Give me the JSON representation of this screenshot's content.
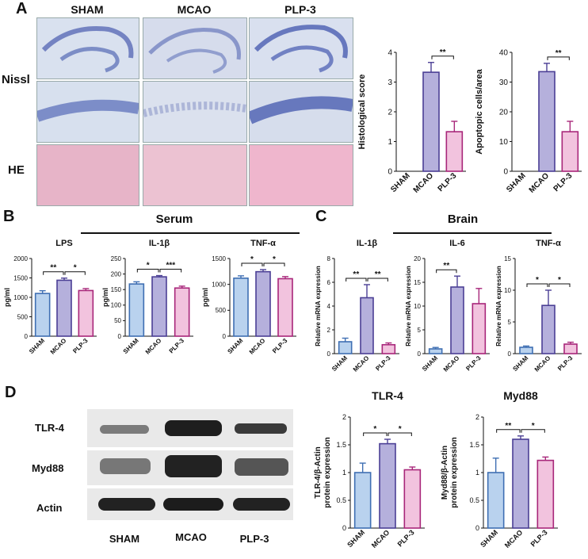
{
  "panels": {
    "a": "A",
    "b": "B",
    "c": "C",
    "d": "D"
  },
  "micro": {
    "columns": [
      "SHAM",
      "MCAO",
      "PLP-3"
    ],
    "rows": [
      "Nissl",
      "HE"
    ]
  },
  "groups": {
    "serum": "Serum",
    "brain": "Brain"
  },
  "blot": {
    "rows": [
      "TLR-4",
      "Myd88",
      "Actin"
    ],
    "columns": [
      "SHAM",
      "MCAO",
      "PLP-3"
    ]
  },
  "colors": {
    "sham": "#b9d2ee",
    "sham_edge": "#3f6fb3",
    "mcao": "#b5b0dc",
    "mcao_edge": "#4b3f95",
    "plp3": "#f2c3de",
    "plp3_edge": "#a8267a"
  },
  "chart_data": [
    {
      "id": "histo",
      "type": "bar",
      "title": "",
      "ylabel": "Histological score",
      "categories": [
        "SHAM",
        "MCAO",
        "PLP-3"
      ],
      "values": [
        0,
        3.33,
        1.33
      ],
      "errors": [
        0,
        0.33,
        0.35
      ],
      "ylim": [
        0,
        4
      ],
      "yticks": [
        0,
        1,
        2,
        3,
        4
      ],
      "sig": [
        {
          "from": 1,
          "to": 2,
          "label": "**"
        }
      ]
    },
    {
      "id": "apop",
      "type": "bar",
      "title": "",
      "ylabel": "Apoptopic cells/area",
      "categories": [
        "SHAM",
        "MCAO",
        "PLP-3"
      ],
      "values": [
        0,
        33.5,
        13.3
      ],
      "errors": [
        0,
        2.8,
        3.5
      ],
      "ylim": [
        0,
        40
      ],
      "yticks": [
        0,
        10,
        20,
        30,
        40
      ],
      "sig": [
        {
          "from": 1,
          "to": 2,
          "label": "**"
        }
      ]
    },
    {
      "id": "lps",
      "type": "bar",
      "title": "LPS",
      "ylabel": "pg/ml",
      "categories": [
        "SHAM",
        "MCAO",
        "PLP-3"
      ],
      "values": [
        1100,
        1440,
        1175
      ],
      "errors": [
        70,
        55,
        50
      ],
      "ylim": [
        0,
        2000
      ],
      "yticks": [
        0,
        500,
        1000,
        1500,
        2000
      ],
      "sig": [
        {
          "from": 0,
          "to": 1,
          "label": "**"
        },
        {
          "from": 1,
          "to": 2,
          "label": "*"
        }
      ]
    },
    {
      "id": "il1b_serum",
      "type": "bar",
      "title": "IL-1β",
      "ylabel": "pg/ml",
      "categories": [
        "SHAM",
        "MCAO",
        "PLP-3"
      ],
      "values": [
        168,
        191,
        155
      ],
      "errors": [
        7,
        4,
        6
      ],
      "ylim": [
        0,
        250
      ],
      "yticks": [
        0,
        50,
        100,
        150,
        200,
        250
      ],
      "sig": [
        {
          "from": 0,
          "to": 1,
          "label": "*"
        },
        {
          "from": 1,
          "to": 2,
          "label": "***"
        }
      ]
    },
    {
      "id": "tnfa_serum",
      "type": "bar",
      "title": "TNF-α",
      "ylabel": "pg/ml",
      "categories": [
        "SHAM",
        "MCAO",
        "PLP-3"
      ],
      "values": [
        1120,
        1245,
        1110
      ],
      "errors": [
        45,
        40,
        40
      ],
      "ylim": [
        0,
        1500
      ],
      "yticks": [
        0,
        500,
        1000,
        1500
      ],
      "sig": [
        {
          "from": 0,
          "to": 1,
          "label": "*"
        },
        {
          "from": 1,
          "to": 2,
          "label": "*"
        }
      ]
    },
    {
      "id": "il1b_brain",
      "type": "bar",
      "title": "IL-1β",
      "ylabel": "Relative mRNA expression",
      "categories": [
        "SHAM",
        "MCAO",
        "PLP-3"
      ],
      "values": [
        1.0,
        4.7,
        0.75
      ],
      "errors": [
        0.3,
        1.1,
        0.15
      ],
      "ylim": [
        0,
        8
      ],
      "yticks": [
        0,
        2,
        4,
        6,
        8
      ],
      "sig": [
        {
          "from": 0,
          "to": 1,
          "label": "**"
        },
        {
          "from": 1,
          "to": 2,
          "label": "**"
        }
      ]
    },
    {
      "id": "il6_brain",
      "type": "bar",
      "title": "IL-6",
      "ylabel": "Relative mRNA expression",
      "categories": [
        "SHAM",
        "MCAO",
        "PLP-3"
      ],
      "values": [
        1.0,
        14.0,
        10.5
      ],
      "errors": [
        0.3,
        2.3,
        3.2
      ],
      "ylim": [
        0,
        20
      ],
      "yticks": [
        0,
        5,
        10,
        15,
        20
      ],
      "sig": [
        {
          "from": 0,
          "to": 1,
          "label": "**"
        }
      ]
    },
    {
      "id": "tnfa_brain",
      "type": "bar",
      "title": "TNF-α",
      "ylabel": "Relative mRNA expression",
      "categories": [
        "SHAM",
        "MCAO",
        "PLP-3"
      ],
      "values": [
        1.0,
        7.6,
        1.5
      ],
      "errors": [
        0.2,
        2.4,
        0.3
      ],
      "ylim": [
        0,
        15
      ],
      "yticks": [
        0,
        5,
        10,
        15
      ],
      "sig": [
        {
          "from": 0,
          "to": 1,
          "label": "*"
        },
        {
          "from": 1,
          "to": 2,
          "label": "*"
        }
      ]
    },
    {
      "id": "tlr4",
      "type": "bar",
      "title": "TLR-4",
      "ylabel": "TLR-4/β-Actin protein expression",
      "categories": [
        "SHAM",
        "MCAO",
        "PLP-3"
      ],
      "values": [
        1.0,
        1.52,
        1.05
      ],
      "errors": [
        0.17,
        0.08,
        0.05
      ],
      "ylim": [
        0,
        2.0
      ],
      "yticks": [
        0,
        0.5,
        1.0,
        1.5,
        2.0
      ],
      "sig": [
        {
          "from": 0,
          "to": 1,
          "label": "*"
        },
        {
          "from": 1,
          "to": 2,
          "label": "*"
        }
      ]
    },
    {
      "id": "myd88",
      "type": "bar",
      "title": "Myd88",
      "ylabel": "Myd88/β-Actin protein expression",
      "categories": [
        "SHAM",
        "MCAO",
        "PLP-3"
      ],
      "values": [
        1.0,
        1.6,
        1.22
      ],
      "errors": [
        0.26,
        0.06,
        0.06
      ],
      "ylim": [
        0,
        2.0
      ],
      "yticks": [
        0,
        0.5,
        1.0,
        1.5,
        2.0
      ],
      "sig": [
        {
          "from": 0,
          "to": 1,
          "label": "**"
        },
        {
          "from": 1,
          "to": 2,
          "label": "*"
        }
      ]
    }
  ]
}
